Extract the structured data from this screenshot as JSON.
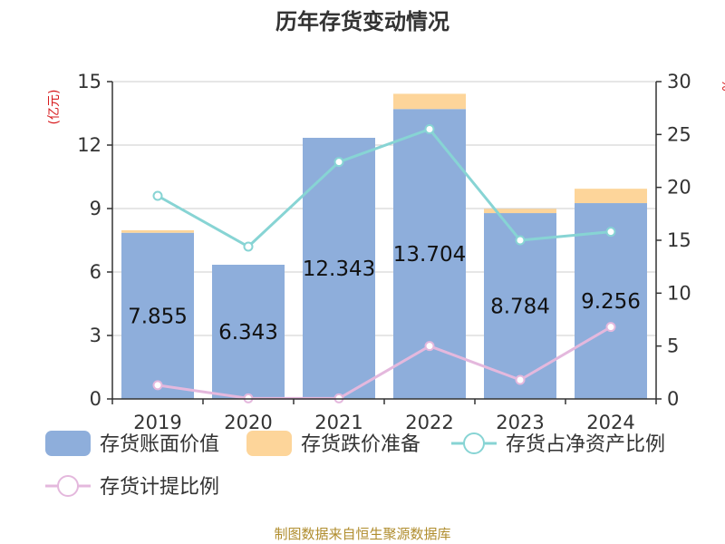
{
  "title": "历年存货变动情况",
  "source": "制图数据来自恒生聚源数据库",
  "chart_data": {
    "type": "bar",
    "categories": [
      "2019",
      "2020",
      "2021",
      "2022",
      "2023",
      "2024"
    ],
    "left_axis": {
      "unit": "(亿元)",
      "ylim": [
        0,
        15
      ],
      "ticks": [
        "0",
        "3",
        "6",
        "9",
        "12",
        "15"
      ]
    },
    "right_axis": {
      "unit": "%",
      "ylim": [
        0,
        30
      ],
      "ticks": [
        "0",
        "5",
        "10",
        "15",
        "20",
        "25",
        "30"
      ]
    },
    "series": [
      {
        "name": "存货账面价值",
        "type": "bar",
        "axis": "left",
        "color": "#8eaedb",
        "values": [
          7.855,
          6.343,
          12.343,
          13.704,
          8.784,
          9.256
        ],
        "labels": [
          "7.855",
          "6.343",
          "12.343",
          "13.704",
          "8.784",
          "9.256"
        ]
      },
      {
        "name": "存货跌价准备",
        "type": "bar-stacked",
        "axis": "left",
        "color": "#fdd59a",
        "values": [
          0.12,
          0.0,
          0.0,
          0.72,
          0.2,
          0.68
        ]
      },
      {
        "name": "存货占净资产比例",
        "type": "line",
        "axis": "right",
        "color": "#87d4d4",
        "values": [
          19.2,
          14.4,
          22.4,
          25.5,
          15.0,
          15.8
        ]
      },
      {
        "name": "存货计提比例",
        "type": "line",
        "axis": "right",
        "color": "#e4b8dd",
        "values": [
          1.3,
          0.05,
          0.05,
          5.0,
          1.8,
          6.8
        ]
      }
    ],
    "grid": true,
    "legend_position": "bottom"
  }
}
